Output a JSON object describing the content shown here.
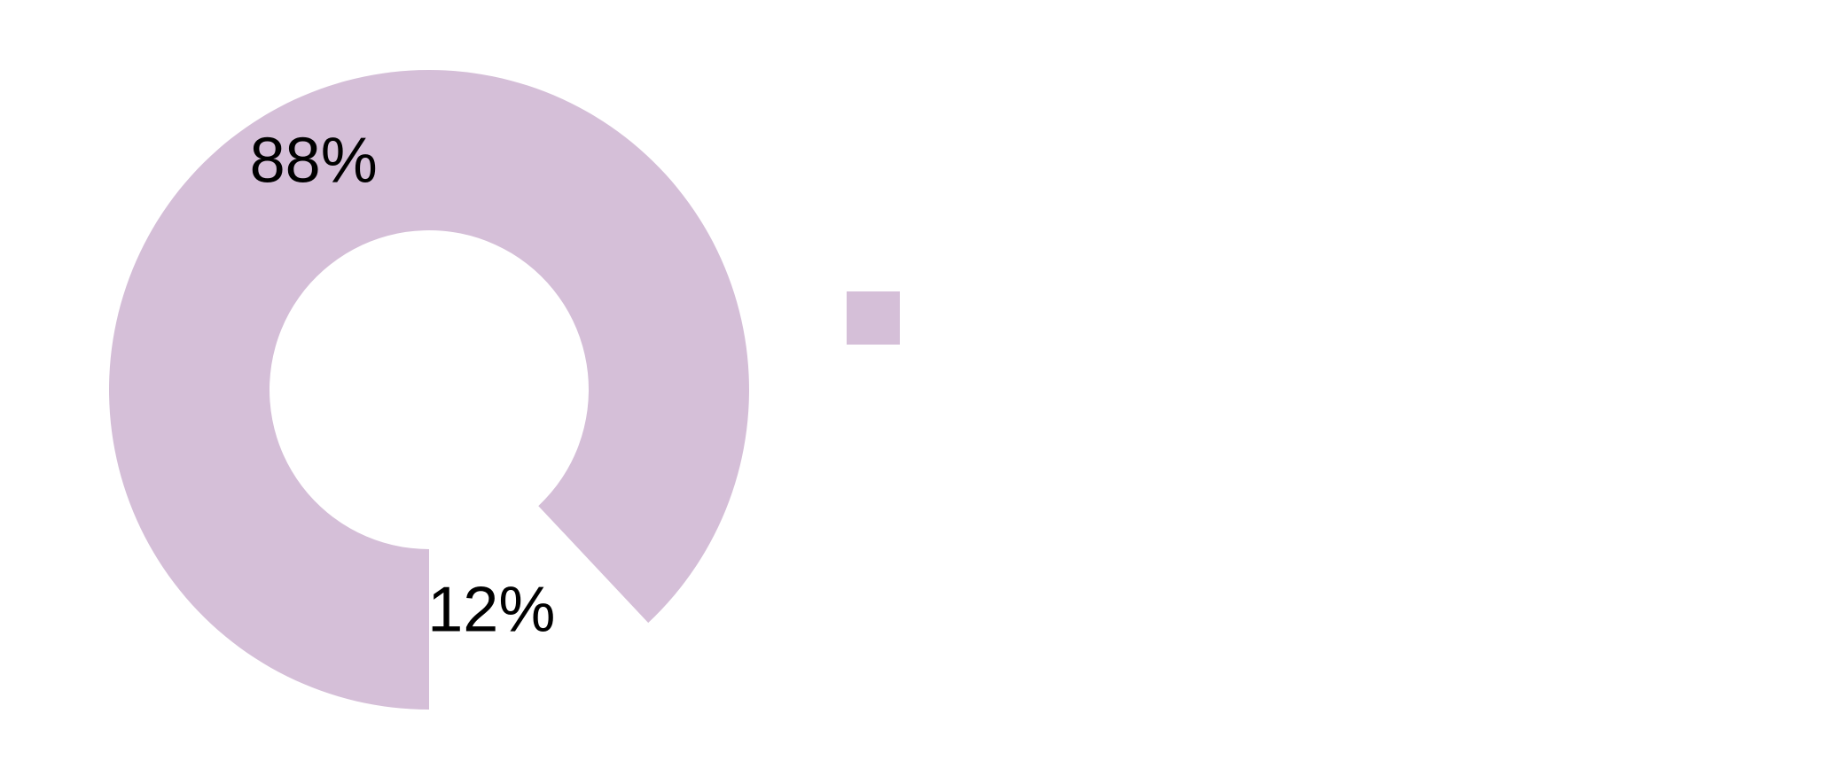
{
  "chart_data": {
    "type": "donut",
    "categories": [
      null,
      null
    ],
    "values": [
      88,
      12
    ],
    "value_labels": [
      "88%",
      "12%"
    ],
    "colors": [
      "#d5bfd8",
      "#ffffff"
    ]
  }
}
